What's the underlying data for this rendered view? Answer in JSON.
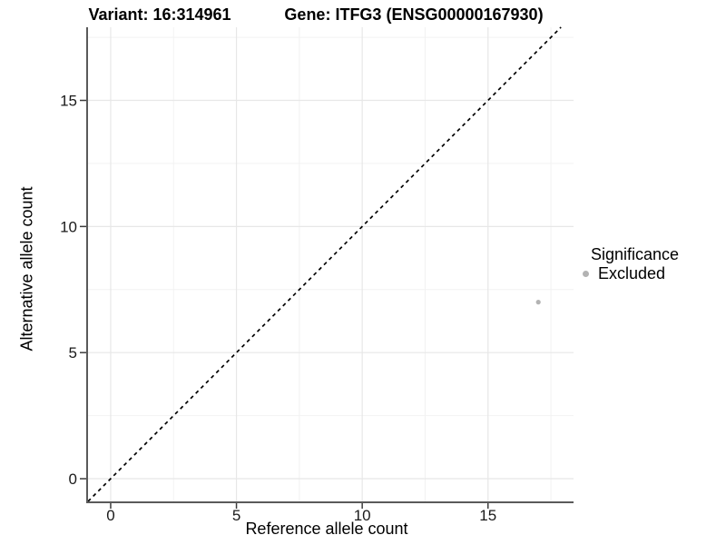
{
  "header": {
    "variant_label": "Variant: 16:314961",
    "gene_label": "Gene: ITFG3 (ENSG00000167930)"
  },
  "chart_data": {
    "type": "scatter",
    "title": "",
    "xlabel": "Reference allele count",
    "ylabel": "Alternative allele count",
    "xlim": [
      -0.9,
      18.4
    ],
    "ylim": [
      -0.9,
      17.9
    ],
    "x_ticks": [
      0,
      5,
      10,
      15
    ],
    "y_ticks": [
      0,
      5,
      10,
      15
    ],
    "minor_tick_step": 2.5,
    "grid": "major-and-minor",
    "reference_line": {
      "type": "identity",
      "slope": 1,
      "intercept": 0,
      "style": "dashed",
      "color": "#000000"
    },
    "points": [
      {
        "x": 17,
        "y": 7,
        "group": "Excluded"
      }
    ],
    "legend": {
      "title": "Significance",
      "position": "right",
      "entries": [
        {
          "label": "Excluded",
          "color": "#b3b3b3"
        }
      ]
    },
    "colors": {
      "point": "#b3b3b3",
      "grid_major": "#e7e7e7",
      "grid_minor": "#f2f2f2",
      "axis_line": "#5a5a5a",
      "tick_mark": "#3c3c3c",
      "tick_label": "#1a1a1a"
    }
  }
}
